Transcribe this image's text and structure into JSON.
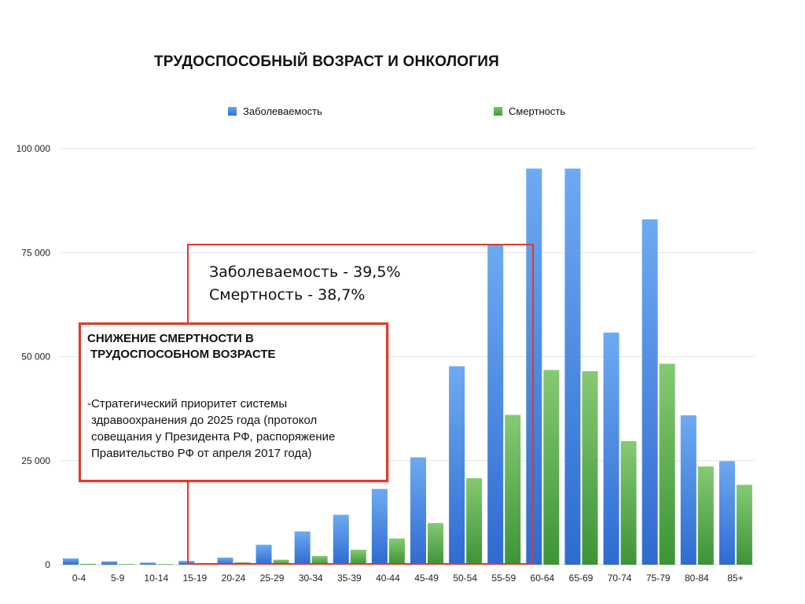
{
  "chart_data": {
    "type": "bar",
    "title": "ТРУДОСПОСОБНЫЙ ВОЗРАСТ И ОНКОЛОГИЯ",
    "categories": [
      "0-4",
      "5-9",
      "10-14",
      "15-19",
      "20-24",
      "25-29",
      "30-34",
      "35-39",
      "40-44",
      "45-49",
      "50-54",
      "55-59",
      "60-64",
      "65-69",
      "70-74",
      "75-79",
      "80-84",
      "85+"
    ],
    "series": [
      {
        "name": "Заболеваемость",
        "color": "#3d7fe0",
        "values": [
          1500,
          800,
          500,
          900,
          1700,
          4800,
          8000,
          12000,
          18200,
          25800,
          47700,
          77000,
          95200,
          95200,
          55800,
          83000,
          35900,
          24900
        ]
      },
      {
        "name": "Смертность",
        "color": "#4fa843",
        "values": [
          200,
          150,
          150,
          250,
          600,
          1200,
          2100,
          3600,
          6300,
          10000,
          20800,
          36000,
          46800,
          46500,
          29700,
          48300,
          23600,
          19200
        ]
      }
    ],
    "ylim": [
      0,
      100000
    ],
    "yticks": [
      0,
      25000,
      50000,
      75000,
      100000
    ],
    "ytick_labels": [
      "0",
      "25 000",
      "50 000",
      "75 000",
      "100 000"
    ],
    "grid": true,
    "legend": "top"
  },
  "annotations": {
    "stats_line1": "Заболеваемость - 39,5%",
    "stats_line2": "Смертность - 38,7%",
    "box_heading_line1": "СНИЖЕНИЕ СМЕРТНОСТИ В",
    "box_heading_line2": "ТРУДОСПОСОБНОМ ВОЗРАСТЕ",
    "box_body_line1": "-Стратегический приоритет системы",
    "box_body_line2": "здравоохранения до 2025 года (протокол",
    "box_body_line3": "совещания у Президента РФ, распоряжение",
    "box_body_line4": "Правительство РФ от апреля 2017 года)"
  },
  "colors": {
    "accent_red": "#e0392b",
    "grid": "#e6e6e6"
  }
}
